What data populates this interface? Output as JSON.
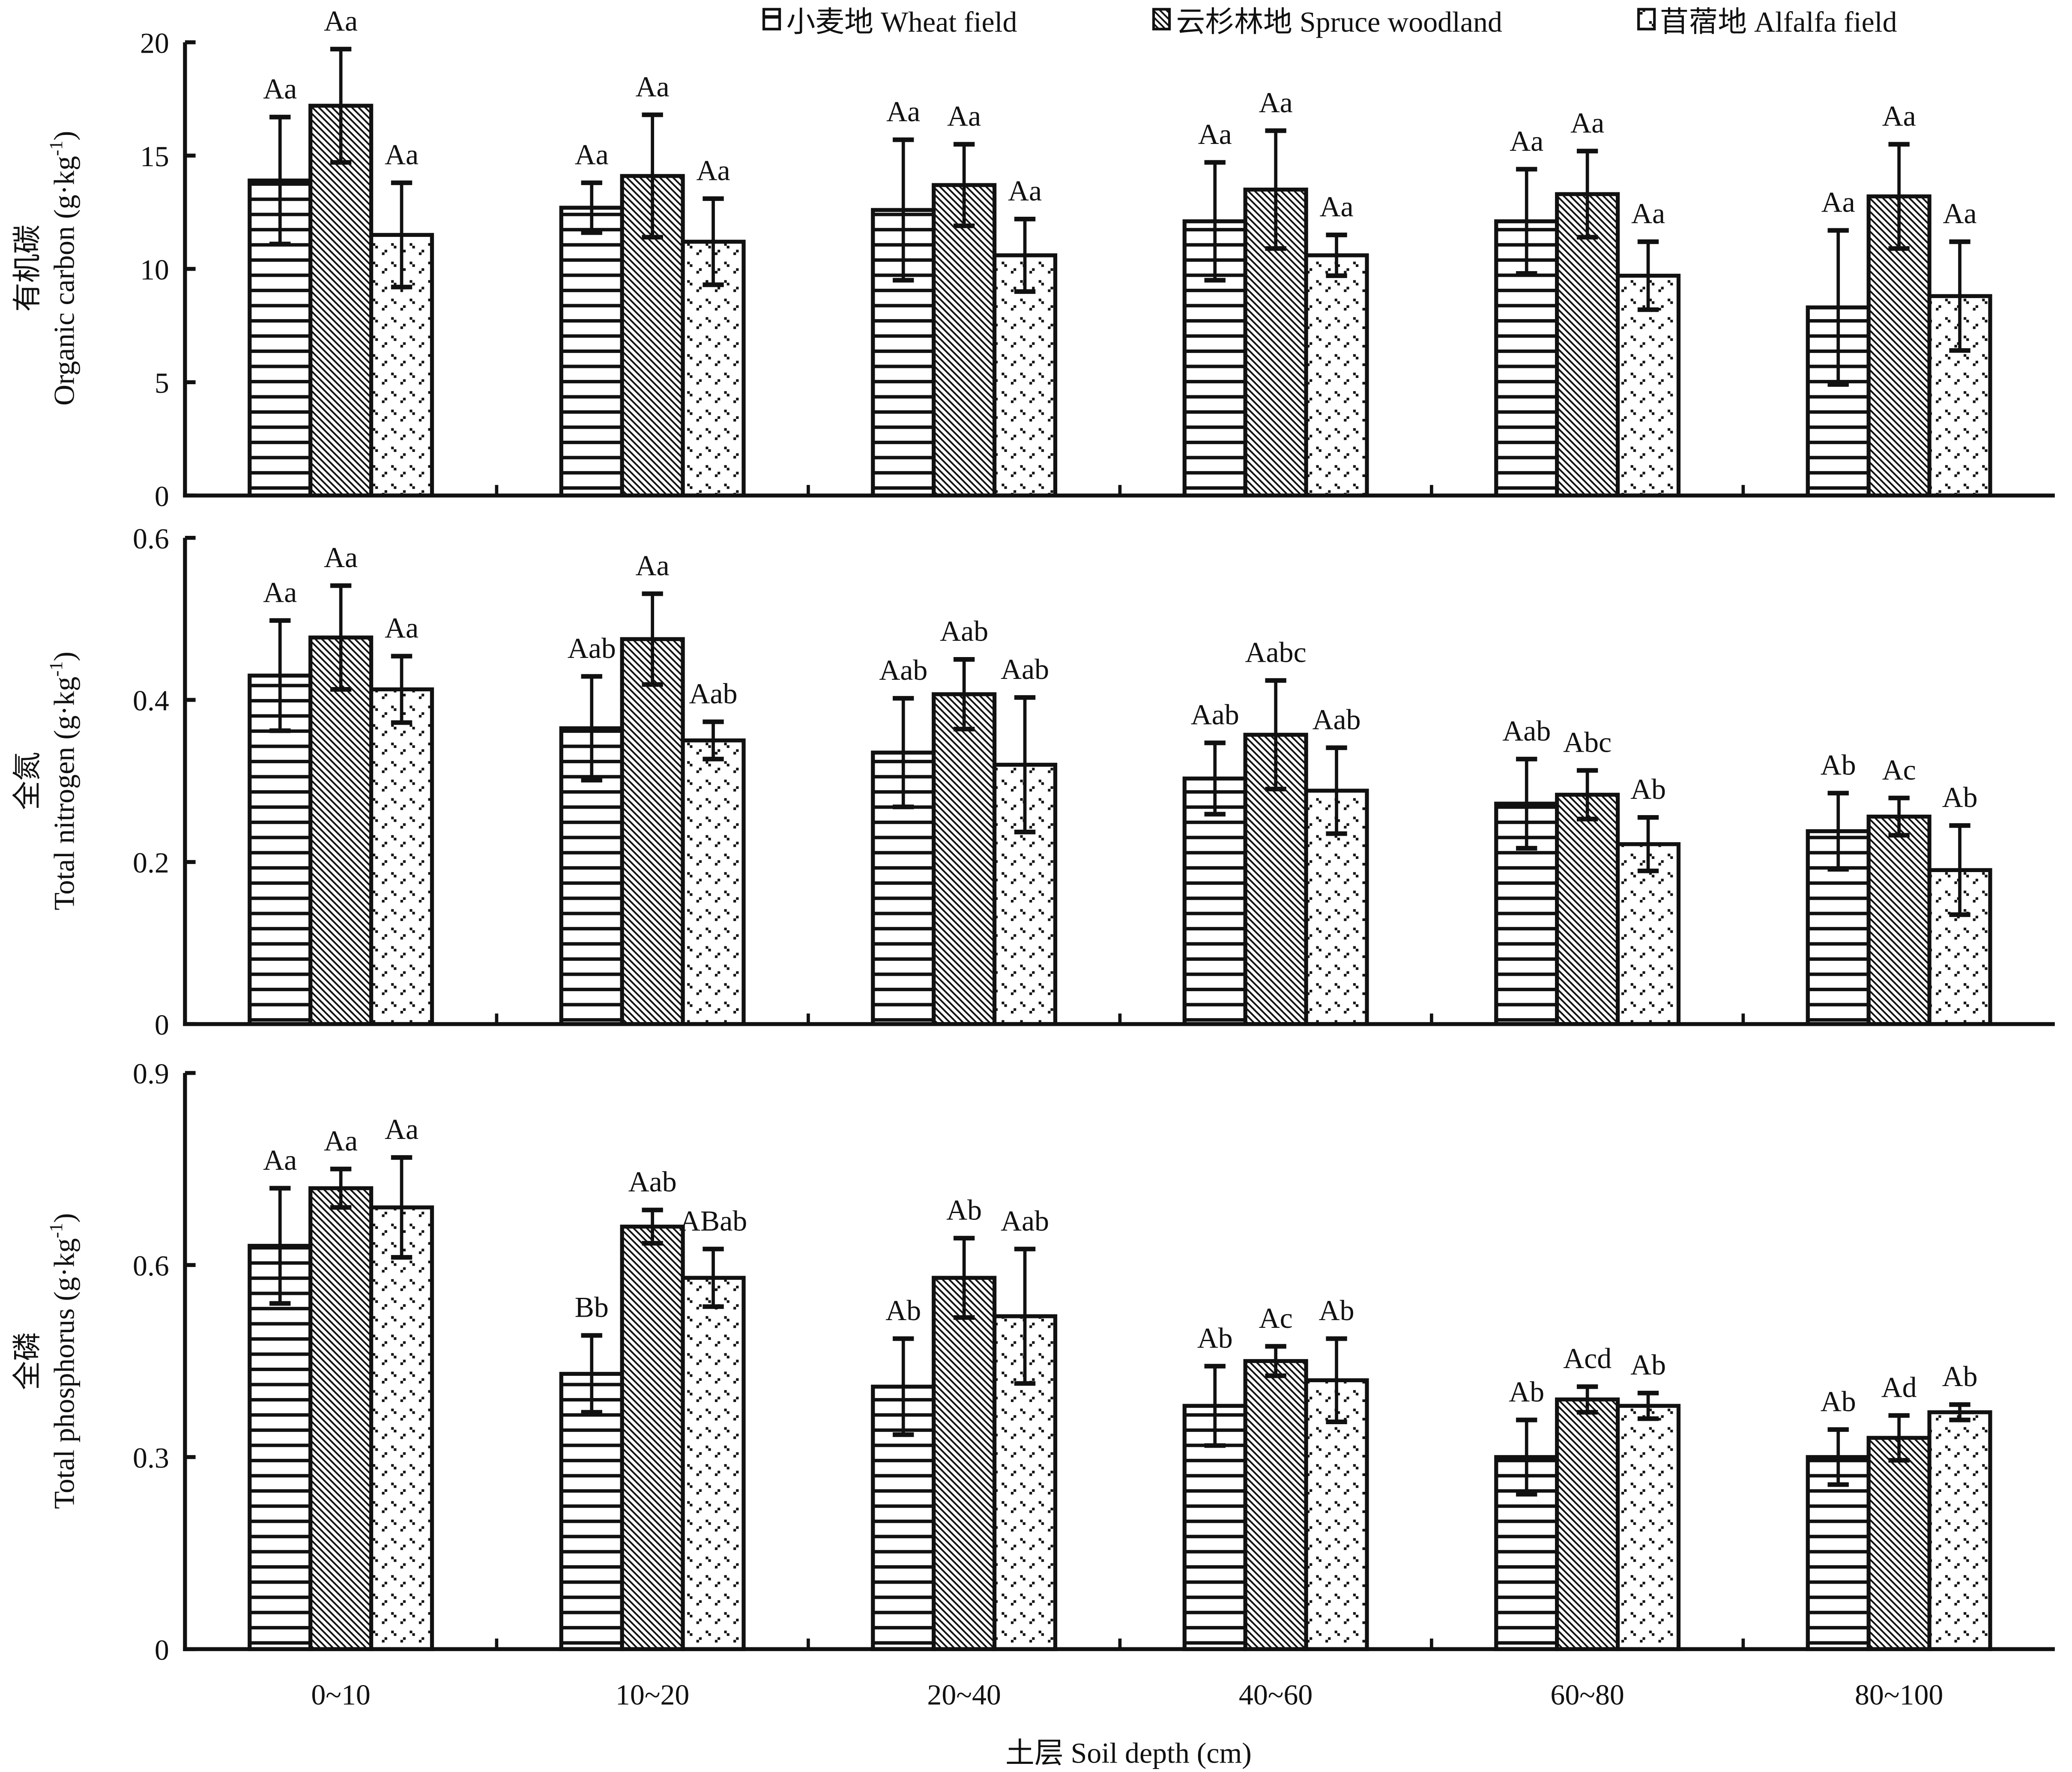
{
  "chart_data": [
    {
      "type": "bar",
      "title": "",
      "ylabel_cn": "有机碳",
      "ylabel": "Organic carbon (g·kg",
      "ylabel_sup": "-1",
      "ylabel_close": ")",
      "ylim": [
        0,
        20
      ],
      "yticks": [
        "0",
        "5",
        "10",
        "15",
        "20"
      ],
      "ytick_values": [
        0,
        5,
        10,
        15,
        20
      ],
      "categories": [
        "0~10",
        "10~20",
        "20~40",
        "40~60",
        "60~80",
        "80~100"
      ],
      "series": [
        {
          "name": "小麦地 Wheat field",
          "values": [
            13.9,
            12.7,
            12.6,
            12.1,
            12.1,
            8.3
          ],
          "errors": [
            2.8,
            1.1,
            3.1,
            2.6,
            2.3,
            3.4
          ],
          "letters": [
            "Aa",
            "Aa",
            "Aa",
            "Aa",
            "Aa",
            "Aa"
          ]
        },
        {
          "name": "云杉林地 Spruce woodland",
          "values": [
            17.2,
            14.1,
            13.7,
            13.5,
            13.3,
            13.2
          ],
          "errors": [
            2.5,
            2.7,
            1.8,
            2.6,
            1.9,
            2.3
          ],
          "letters": [
            "Aa",
            "Aa",
            "Aa",
            "Aa",
            "Aa",
            "Aa"
          ]
        },
        {
          "name": "苜蓿地 Alfalfa field",
          "values": [
            11.5,
            11.2,
            10.6,
            10.6,
            9.7,
            8.8
          ],
          "errors": [
            2.3,
            1.9,
            1.6,
            0.9,
            1.5,
            2.4
          ],
          "letters": [
            "Aa",
            "Aa",
            "Aa",
            "Aa",
            "Aa",
            "Aa"
          ]
        }
      ]
    },
    {
      "type": "bar",
      "title": "",
      "ylabel_cn": "全氮",
      "ylabel": "Total nitrogen (g·kg",
      "ylabel_sup": "-1",
      "ylabel_close": ")",
      "ylim": [
        0,
        0.6
      ],
      "yticks": [
        "0",
        "0.2",
        "0.4",
        "0.6"
      ],
      "ytick_values": [
        0,
        0.2,
        0.4,
        0.6
      ],
      "categories": [
        "0~10",
        "10~20",
        "20~40",
        "40~60",
        "60~80",
        "80~100"
      ],
      "series": [
        {
          "name": "小麦地 Wheat field",
          "values": [
            0.43,
            0.365,
            0.335,
            0.303,
            0.272,
            0.238
          ],
          "errors": [
            0.068,
            0.064,
            0.067,
            0.044,
            0.055,
            0.047
          ],
          "letters": [
            "Aa",
            "Aab",
            "Aab",
            "Aab",
            "Aab",
            "Ab"
          ]
        },
        {
          "name": "云杉林地 Spruce woodland",
          "values": [
            0.477,
            0.475,
            0.407,
            0.357,
            0.283,
            0.256
          ],
          "errors": [
            0.064,
            0.056,
            0.043,
            0.067,
            0.03,
            0.023
          ],
          "letters": [
            "Aa",
            "Aa",
            "Aab",
            "Aabc",
            "Abc",
            "Ac"
          ]
        },
        {
          "name": "苜蓿地 Alfalfa field",
          "values": [
            0.413,
            0.35,
            0.32,
            0.288,
            0.222,
            0.19
          ],
          "errors": [
            0.041,
            0.023,
            0.083,
            0.053,
            0.033,
            0.055
          ],
          "letters": [
            "Aa",
            "Aab",
            "Aab",
            "Aab",
            "Ab",
            "Ab"
          ]
        }
      ]
    },
    {
      "type": "bar",
      "title": "",
      "ylabel_cn": "全磷",
      "ylabel": "Total phosphorus (g·kg",
      "ylabel_sup": "-1",
      "ylabel_close": ")",
      "ylim": [
        0,
        0.9
      ],
      "yticks": [
        "0",
        "0.3",
        "0.6",
        "0.9"
      ],
      "ytick_values": [
        0,
        0.3,
        0.6,
        0.9
      ],
      "categories": [
        "0~10",
        "10~20",
        "20~40",
        "40~60",
        "60~80",
        "80~100"
      ],
      "series": [
        {
          "name": "小麦地 Wheat field",
          "values": [
            0.63,
            0.43,
            0.41,
            0.38,
            0.3,
            0.3
          ],
          "errors": [
            0.09,
            0.06,
            0.075,
            0.062,
            0.058,
            0.043
          ],
          "letters": [
            "Aa",
            "Bb",
            "Ab",
            "Ab",
            "Ab",
            "Ab"
          ]
        },
        {
          "name": "云杉林地 Spruce woodland",
          "values": [
            0.72,
            0.66,
            0.58,
            0.45,
            0.39,
            0.33
          ],
          "errors": [
            0.03,
            0.026,
            0.062,
            0.023,
            0.02,
            0.035
          ],
          "letters": [
            "Aa",
            "Aab",
            "Ab",
            "Ac",
            "Acd",
            "Ad"
          ]
        },
        {
          "name": "苜蓿地 Alfalfa field",
          "values": [
            0.69,
            0.58,
            0.52,
            0.42,
            0.38,
            0.37
          ],
          "errors": [
            0.078,
            0.045,
            0.105,
            0.065,
            0.02,
            0.012
          ],
          "letters": [
            "Aa",
            "ABab",
            "Aab",
            "Ab",
            "Ab",
            "Ab"
          ]
        }
      ]
    }
  ],
  "legend": {
    "position": "top-right",
    "items": [
      {
        "label": "小麦地 Wheat field",
        "pattern": "horizontal-lines"
      },
      {
        "label": "云杉林地 Spruce woodland",
        "pattern": "diagonal-hatch"
      },
      {
        "label": "苜蓿地 Alfalfa field",
        "pattern": "dots"
      }
    ]
  },
  "xaxis": {
    "label": "土层 Soil depth (cm)"
  },
  "colors": {
    "ink": "#111111",
    "background": "#ffffff"
  }
}
